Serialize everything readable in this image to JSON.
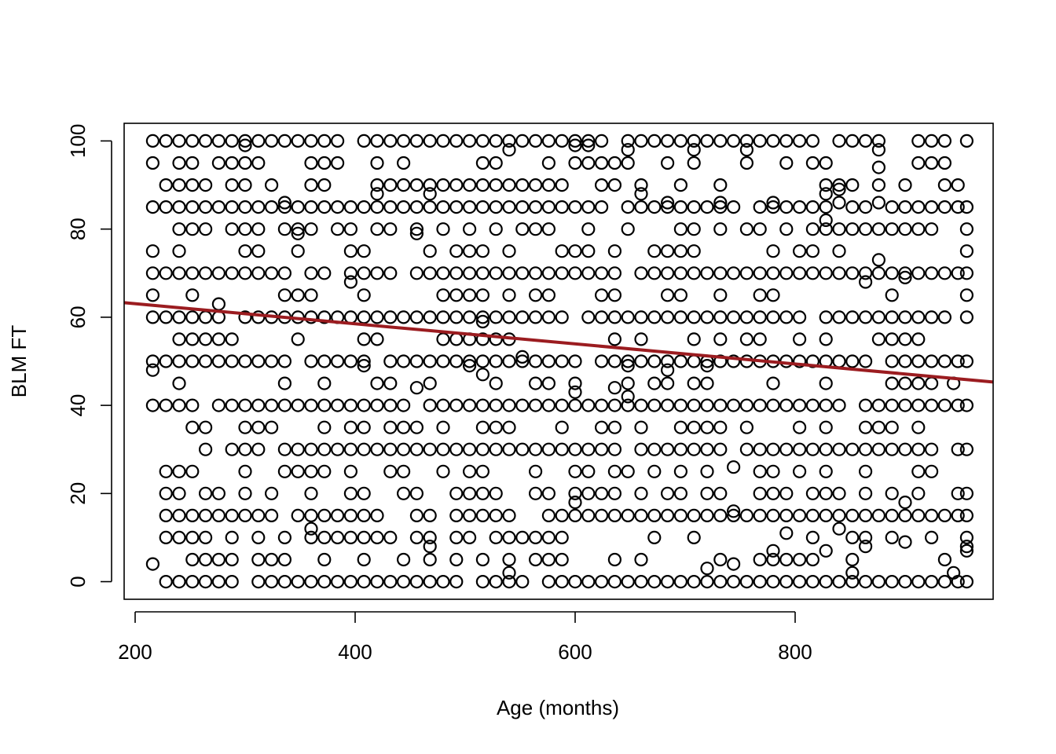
{
  "chart_data": {
    "type": "scatter",
    "title": "",
    "xlabel": "Age (months)",
    "ylabel": "BLM FT",
    "xlim": [
      190,
      980
    ],
    "ylim": [
      -4,
      104
    ],
    "x_ticks": [
      200,
      400,
      600,
      800
    ],
    "y_ticks": [
      0,
      20,
      40,
      60,
      80,
      100
    ],
    "x_tick_labels": [
      "200",
      "400",
      "600",
      "800"
    ],
    "y_tick_labels": [
      "0",
      "20",
      "40",
      "60",
      "80",
      "100"
    ],
    "point_style": "open circle",
    "point_color": "#000000",
    "grid": false,
    "legend": "none",
    "x_range": [
      216,
      956
    ],
    "dense_levels": [
      0,
      15,
      30,
      40,
      50,
      60,
      70,
      85,
      100
    ],
    "medium_levels": [
      10,
      20,
      80,
      90
    ],
    "sparse_levels": [
      5,
      25,
      35,
      45,
      55,
      65,
      75,
      95
    ],
    "scattered_points": [
      {
        "x": 216,
        "y": 95
      },
      {
        "x": 216,
        "y": 75
      },
      {
        "x": 216,
        "y": 48
      },
      {
        "x": 216,
        "y": 4
      },
      {
        "x": 276,
        "y": 63
      },
      {
        "x": 300,
        "y": 99
      },
      {
        "x": 336,
        "y": 86
      },
      {
        "x": 348,
        "y": 80
      },
      {
        "x": 348,
        "y": 79
      },
      {
        "x": 360,
        "y": 12
      },
      {
        "x": 396,
        "y": 68
      },
      {
        "x": 408,
        "y": 49
      },
      {
        "x": 420,
        "y": 88
      },
      {
        "x": 456,
        "y": 79
      },
      {
        "x": 456,
        "y": 44
      },
      {
        "x": 468,
        "y": 88
      },
      {
        "x": 468,
        "y": 8
      },
      {
        "x": 504,
        "y": 49
      },
      {
        "x": 516,
        "y": 59
      },
      {
        "x": 516,
        "y": 47
      },
      {
        "x": 540,
        "y": 98
      },
      {
        "x": 540,
        "y": 2
      },
      {
        "x": 552,
        "y": 51
      },
      {
        "x": 600,
        "y": 99
      },
      {
        "x": 600,
        "y": 43
      },
      {
        "x": 600,
        "y": 18
      },
      {
        "x": 612,
        "y": 99
      },
      {
        "x": 636,
        "y": 44
      },
      {
        "x": 648,
        "y": 98
      },
      {
        "x": 648,
        "y": 49
      },
      {
        "x": 648,
        "y": 42
      },
      {
        "x": 660,
        "y": 88
      },
      {
        "x": 684,
        "y": 86
      },
      {
        "x": 684,
        "y": 48
      },
      {
        "x": 708,
        "y": 98
      },
      {
        "x": 720,
        "y": 49
      },
      {
        "x": 720,
        "y": 3
      },
      {
        "x": 732,
        "y": 86
      },
      {
        "x": 744,
        "y": 26
      },
      {
        "x": 744,
        "y": 16
      },
      {
        "x": 744,
        "y": 4
      },
      {
        "x": 756,
        "y": 98
      },
      {
        "x": 780,
        "y": 86
      },
      {
        "x": 780,
        "y": 7
      },
      {
        "x": 792,
        "y": 11
      },
      {
        "x": 828,
        "y": 88
      },
      {
        "x": 828,
        "y": 82
      },
      {
        "x": 828,
        "y": 7
      },
      {
        "x": 840,
        "y": 89
      },
      {
        "x": 840,
        "y": 86
      },
      {
        "x": 840,
        "y": 12
      },
      {
        "x": 852,
        "y": 2
      },
      {
        "x": 864,
        "y": 68
      },
      {
        "x": 864,
        "y": 8
      },
      {
        "x": 876,
        "y": 98
      },
      {
        "x": 876,
        "y": 94
      },
      {
        "x": 876,
        "y": 86
      },
      {
        "x": 876,
        "y": 73
      },
      {
        "x": 900,
        "y": 69
      },
      {
        "x": 900,
        "y": 18
      },
      {
        "x": 900,
        "y": 9
      },
      {
        "x": 944,
        "y": 45
      },
      {
        "x": 944,
        "y": 2
      },
      {
        "x": 956,
        "y": 8
      },
      {
        "x": 956,
        "y": 7
      }
    ],
    "series": [
      {
        "type": "regression-line",
        "color": "#9b1c20",
        "line": [
          [
            190,
            63.3
          ],
          [
            980,
            45.3
          ]
        ]
      }
    ]
  }
}
